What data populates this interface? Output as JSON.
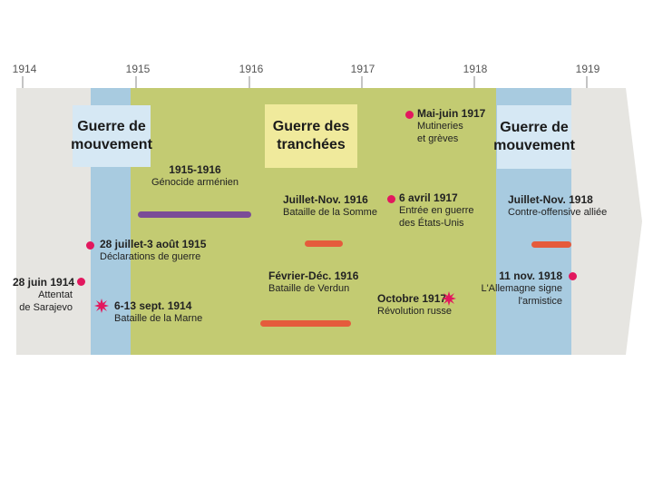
{
  "years": [
    "1914",
    "1915",
    "1916",
    "1917",
    "1918",
    "1919"
  ],
  "phases": {
    "mouvement1": {
      "title": "Guerre de mouvement"
    },
    "tranchees": {
      "title": "Guerre des tranchées"
    },
    "mouvement2": {
      "title": "Guerre de mouvement"
    }
  },
  "events": {
    "sarajevo": {
      "date": "28 juin 1914",
      "desc1": "Attentat",
      "desc2": "de Sarajevo"
    },
    "declarations": {
      "date": "28 juillet-3 août 1915",
      "desc1": "Déclarations de guerre"
    },
    "marne": {
      "date": "6-13 sept. 1914",
      "desc1": "Bataille de la Marne"
    },
    "armenien": {
      "date": "1915-1916",
      "desc1": "Génocide arménien"
    },
    "somme": {
      "date": "Juillet-Nov. 1916",
      "desc1": "Bataille de la Somme"
    },
    "verdun": {
      "date": "Février-Déc. 1916",
      "desc1": "Bataille de Verdun"
    },
    "mutineries": {
      "date": "Mai-juin 1917",
      "desc1": "Mutineries",
      "desc2": "et grèves"
    },
    "usa": {
      "date": "6 avril 1917",
      "desc1": "Entrée en guerre",
      "desc2": "des États-Unis"
    },
    "revolution": {
      "date": "Octobre 1917",
      "desc1": "Révolution russe"
    },
    "contre": {
      "date": "Juillet-Nov. 1918",
      "desc1": "Contre-offensive alliée"
    },
    "armistice": {
      "date": "11 nov. 1918",
      "desc1": "L'Allemagne signe",
      "desc2": "l'armistice"
    }
  },
  "colors": {
    "arrow": "#e6e5e1",
    "mouvement": "#a8cbe0",
    "tranchees": "#c3cb72",
    "title_mouvement": "#d6e8f4",
    "title_tranchees": "#f0ea9c",
    "purple": "#7b4c97",
    "orange": "#e55b3c",
    "pink": "#e2185e"
  }
}
